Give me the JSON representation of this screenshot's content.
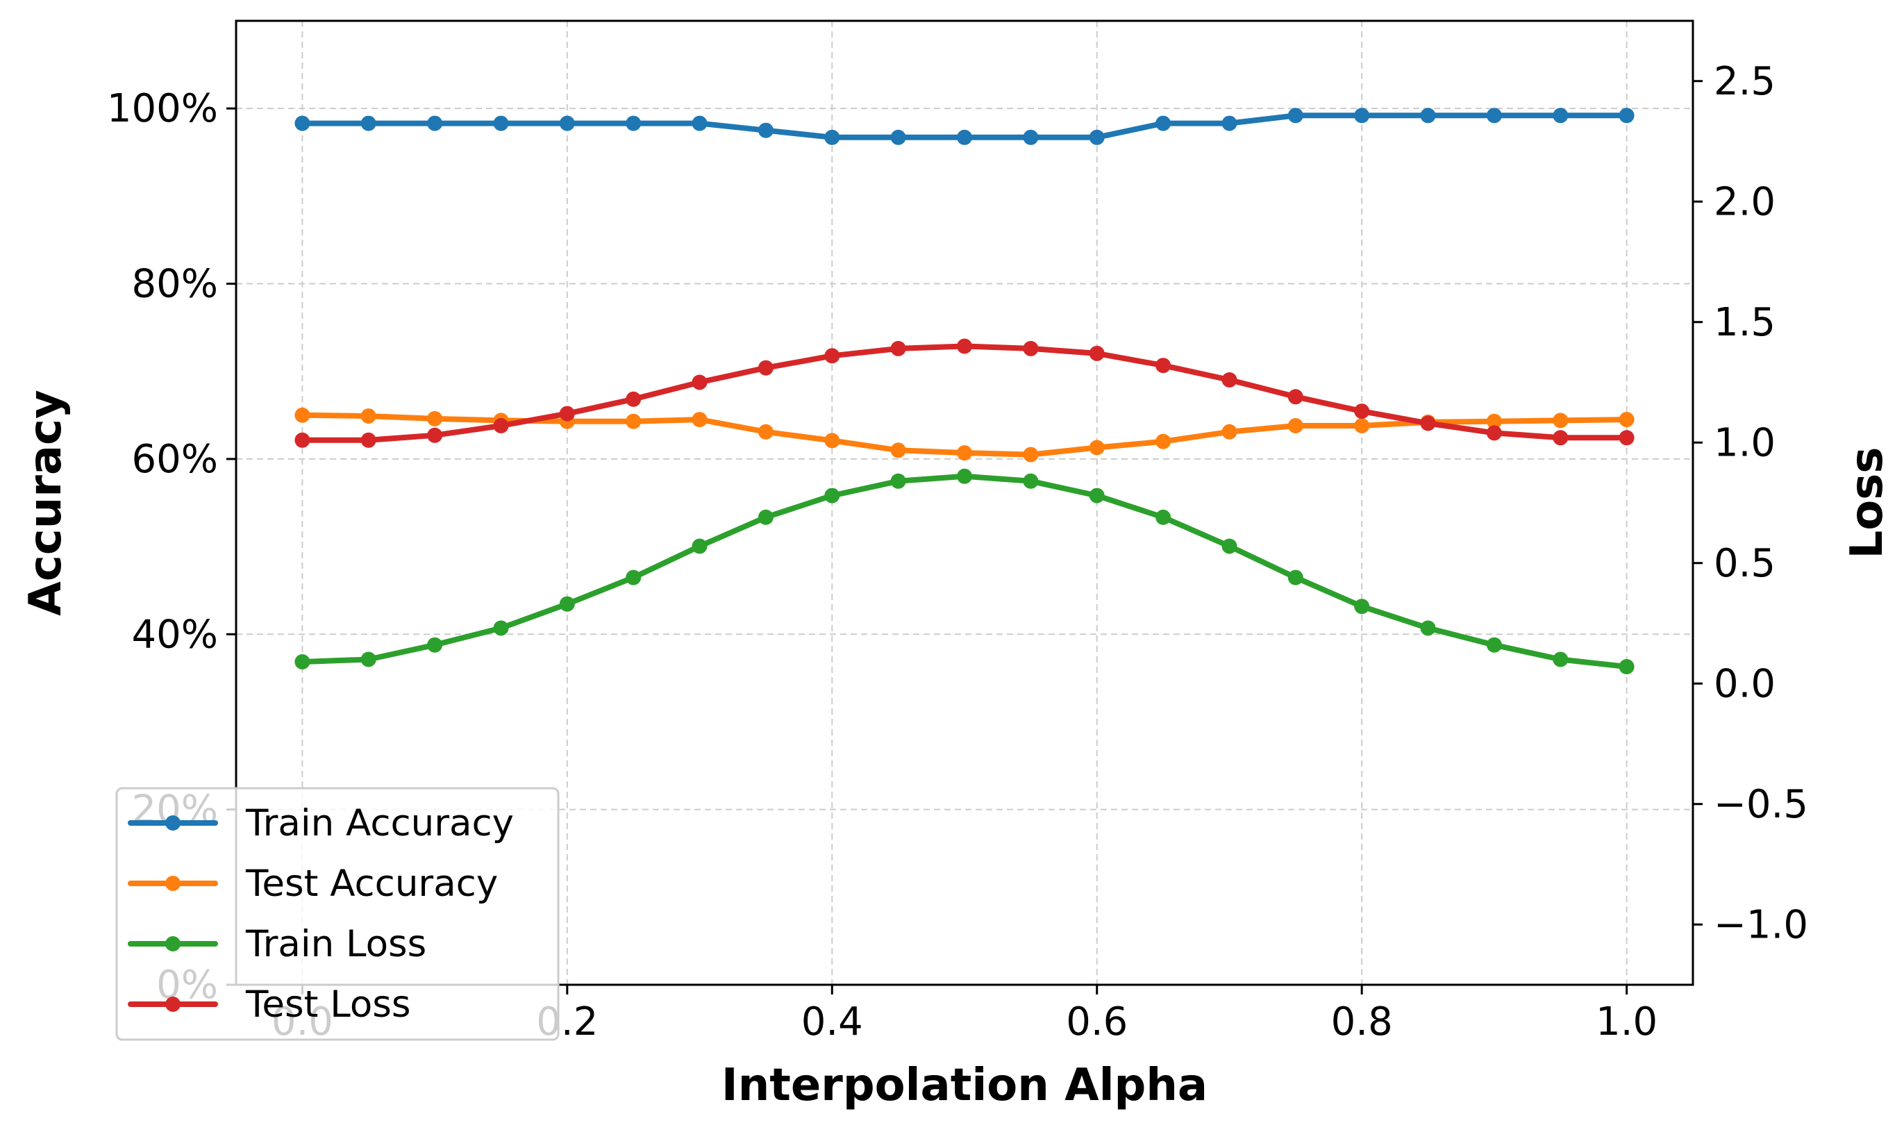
{
  "chart_data": {
    "type": "line",
    "title": "",
    "xlabel": "Interpolation Alpha",
    "ylabel_left": "Accuracy",
    "ylabel_right": "Loss",
    "xlim": [
      -0.05,
      1.05
    ],
    "ylim_left": [
      0,
      110
    ],
    "ylim_right": [
      -1.25,
      2.75
    ],
    "grid": true,
    "legend_position": "lower-left",
    "x": [
      0.0,
      0.05,
      0.1,
      0.15,
      0.2,
      0.25,
      0.3,
      0.35,
      0.4,
      0.45,
      0.5,
      0.55,
      0.6,
      0.65,
      0.7,
      0.75,
      0.8,
      0.85,
      0.9,
      0.95,
      1.0
    ],
    "x_ticks": [
      {
        "value": 0.0,
        "label": "0.0"
      },
      {
        "value": 0.2,
        "label": "0.2"
      },
      {
        "value": 0.4,
        "label": "0.4"
      },
      {
        "value": 0.6,
        "label": "0.6"
      },
      {
        "value": 0.8,
        "label": "0.8"
      },
      {
        "value": 1.0,
        "label": "1.0"
      }
    ],
    "y_ticks_left": [
      {
        "value": 0,
        "label": "0%"
      },
      {
        "value": 20,
        "label": "20%"
      },
      {
        "value": 40,
        "label": "40%"
      },
      {
        "value": 60,
        "label": "60%"
      },
      {
        "value": 80,
        "label": "80%"
      },
      {
        "value": 100,
        "label": "100%"
      }
    ],
    "y_ticks_right": [
      {
        "value": -1.0,
        "label": "−1.0"
      },
      {
        "value": -0.5,
        "label": "−0.5"
      },
      {
        "value": 0.0,
        "label": "0.0"
      },
      {
        "value": 0.5,
        "label": "0.5"
      },
      {
        "value": 1.0,
        "label": "1.0"
      },
      {
        "value": 1.5,
        "label": "1.5"
      },
      {
        "value": 2.0,
        "label": "2.0"
      },
      {
        "value": 2.5,
        "label": "2.5"
      }
    ],
    "series": [
      {
        "name": "Train Accuracy",
        "axis": "left",
        "color": "#1f77b4",
        "values": [
          98.3,
          98.3,
          98.3,
          98.3,
          98.3,
          98.3,
          98.3,
          97.5,
          96.7,
          96.7,
          96.7,
          96.7,
          96.7,
          98.3,
          98.3,
          99.2,
          99.2,
          99.2,
          99.2,
          99.2,
          99.2
        ]
      },
      {
        "name": "Test Accuracy",
        "axis": "left",
        "color": "#ff7f0e",
        "values": [
          65.0,
          64.9,
          64.6,
          64.4,
          64.3,
          64.3,
          64.5,
          63.1,
          62.1,
          61.0,
          60.7,
          60.5,
          61.3,
          62.0,
          63.1,
          63.8,
          63.8,
          64.2,
          64.3,
          64.4,
          64.5
        ]
      },
      {
        "name": "Train Loss",
        "axis": "right",
        "color": "#2ca02c",
        "values": [
          0.09,
          0.1,
          0.16,
          0.23,
          0.33,
          0.44,
          0.57,
          0.69,
          0.78,
          0.84,
          0.86,
          0.84,
          0.78,
          0.69,
          0.57,
          0.44,
          0.32,
          0.23,
          0.16,
          0.1,
          0.07
        ]
      },
      {
        "name": "Test Loss",
        "axis": "right",
        "color": "#d62728",
        "values": [
          1.01,
          1.01,
          1.03,
          1.07,
          1.12,
          1.18,
          1.25,
          1.31,
          1.36,
          1.39,
          1.4,
          1.39,
          1.37,
          1.32,
          1.26,
          1.19,
          1.13,
          1.08,
          1.04,
          1.02,
          1.02
        ]
      }
    ]
  }
}
